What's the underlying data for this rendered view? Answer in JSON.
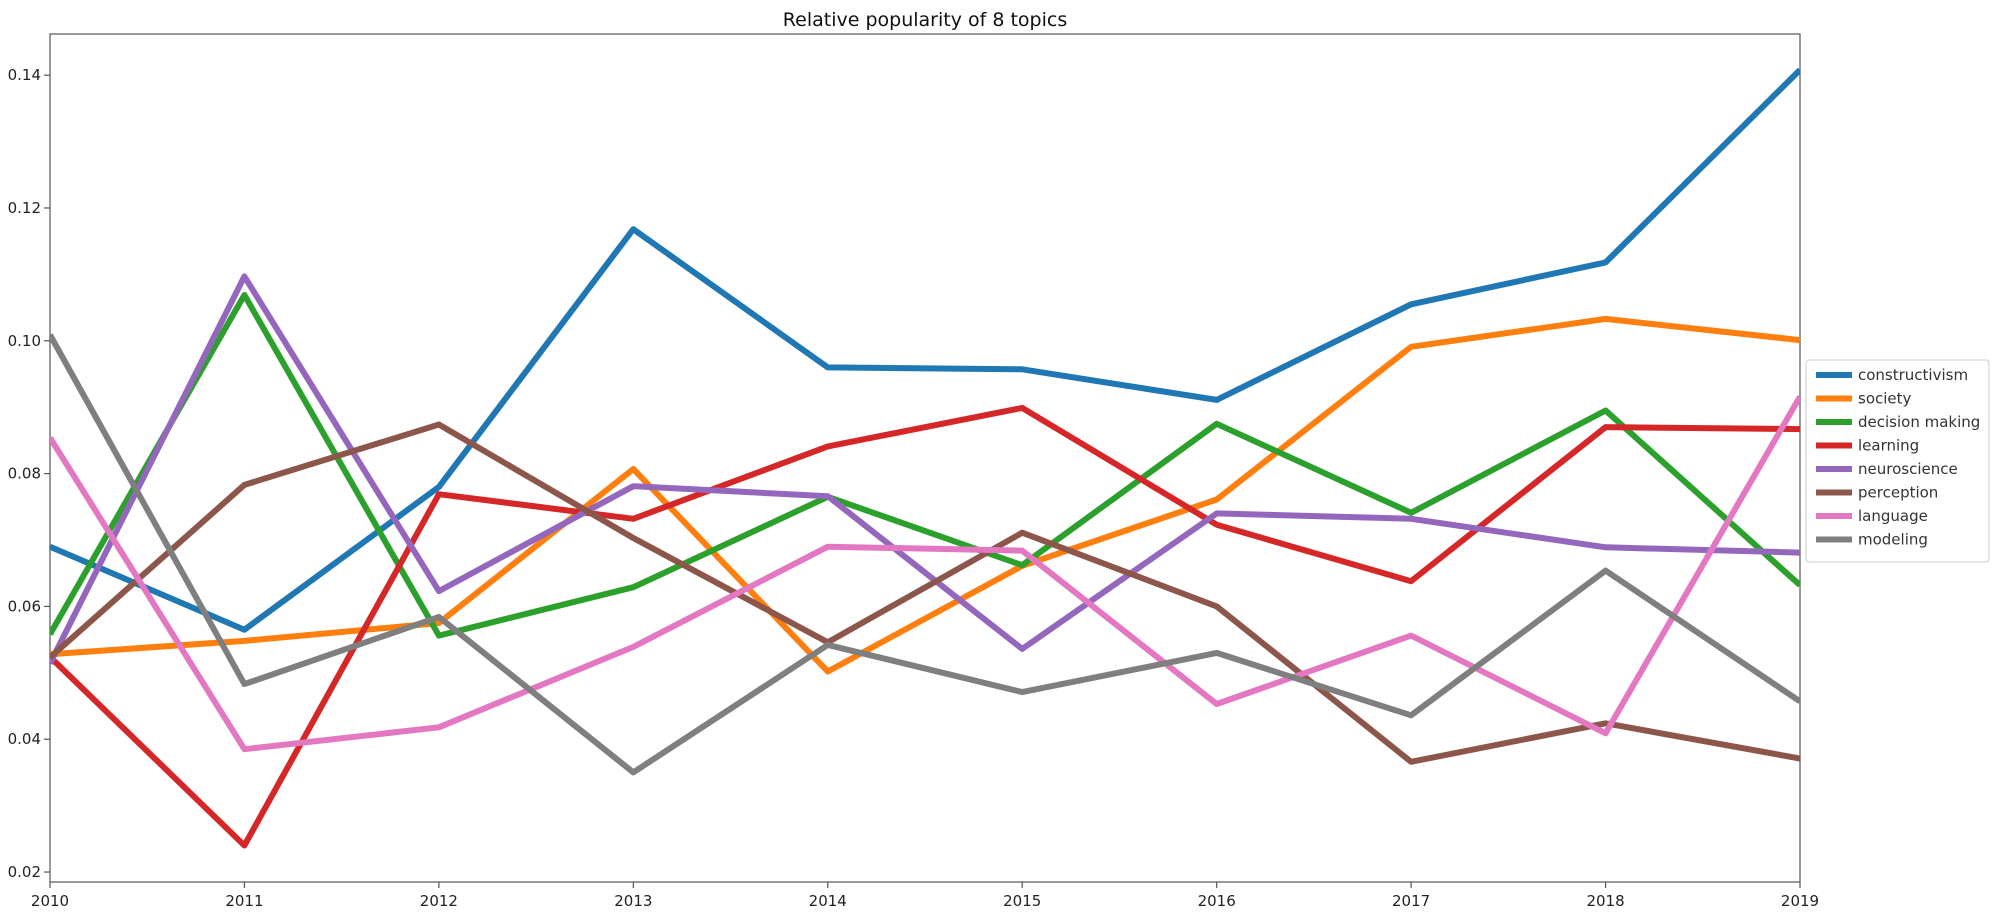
{
  "chart_data": {
    "type": "line",
    "title": "Relative popularity of 8 topics",
    "xlabel": "",
    "ylabel": "",
    "x": [
      2010,
      2011,
      2012,
      2013,
      2014,
      2015,
      2016,
      2017,
      2018,
      2019
    ],
    "xlim": [
      2010,
      2019
    ],
    "ylim": [
      0.0185,
      0.1462
    ],
    "yticks": [
      0.02,
      0.04,
      0.06,
      0.08,
      0.1,
      0.12,
      0.14
    ],
    "ytick_labels": [
      "0.02",
      "0.04",
      "0.06",
      "0.08",
      "0.10",
      "0.12",
      "0.14"
    ],
    "grid": false,
    "legend_position": "center-right-outside",
    "series": [
      {
        "name": "constructivism",
        "color": "#1f77b4",
        "values": [
          0.069,
          0.0565,
          0.078,
          0.1168,
          0.096,
          0.0957,
          0.0911,
          0.1055,
          0.1118,
          0.1408
        ]
      },
      {
        "name": "society",
        "color": "#ff7f0e",
        "values": [
          0.0528,
          0.0548,
          0.0575,
          0.0807,
          0.0502,
          0.0661,
          0.0761,
          0.0991,
          0.1033,
          0.1001
        ]
      },
      {
        "name": "decision making",
        "color": "#2ca02c",
        "values": [
          0.0558,
          0.1069,
          0.0556,
          0.0629,
          0.0765,
          0.0662,
          0.0875,
          0.0741,
          0.0895,
          0.0632
        ]
      },
      {
        "name": "learning",
        "color": "#d62728",
        "values": [
          0.0524,
          0.024,
          0.0769,
          0.0732,
          0.0841,
          0.0899,
          0.0723,
          0.0638,
          0.087,
          0.0867
        ]
      },
      {
        "name": "neuroscience",
        "color": "#9467bd",
        "values": [
          0.0514,
          0.1097,
          0.0623,
          0.0781,
          0.0766,
          0.0536,
          0.074,
          0.0732,
          0.0689,
          0.0681
        ]
      },
      {
        "name": "perception",
        "color": "#8c564b",
        "values": [
          0.0523,
          0.0783,
          0.0874,
          0.0703,
          0.0546,
          0.0711,
          0.06,
          0.0366,
          0.0424,
          0.0371
        ]
      },
      {
        "name": "language",
        "color": "#e377c2",
        "values": [
          0.0854,
          0.0385,
          0.0418,
          0.0539,
          0.069,
          0.0684,
          0.0453,
          0.0556,
          0.0409,
          0.0916
        ]
      },
      {
        "name": "modeling",
        "color": "#7f7f7f",
        "values": [
          0.1009,
          0.0483,
          0.0584,
          0.035,
          0.0542,
          0.0471,
          0.053,
          0.0436,
          0.0654,
          0.0457
        ]
      }
    ]
  }
}
